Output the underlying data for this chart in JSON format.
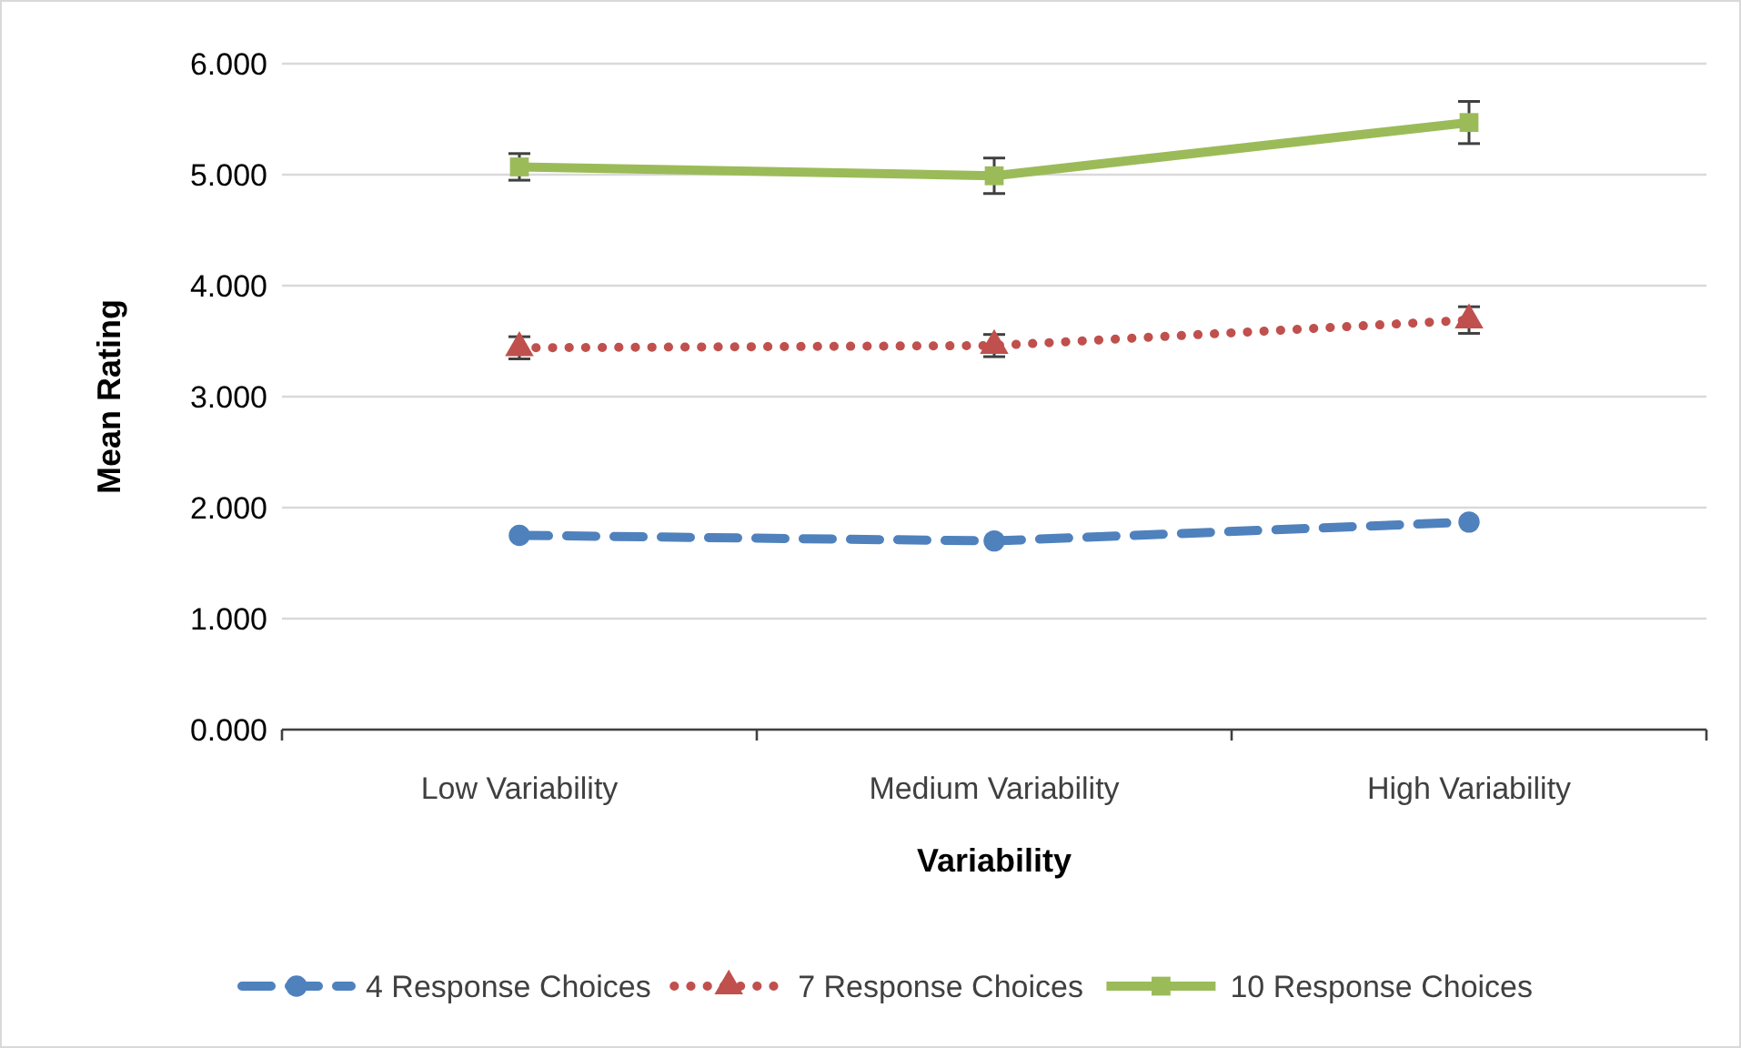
{
  "chart_data": {
    "type": "line",
    "xlabel": "Variability",
    "ylabel": "Mean Rating",
    "categories": [
      "Low Variability",
      "Medium Variability",
      "High Variability"
    ],
    "series": [
      {
        "name": "4 Response Choices",
        "color": "#4f81bd",
        "values": [
          1.75,
          1.7,
          1.87
        ],
        "marker": "circle",
        "line_style": "dashed"
      },
      {
        "name": "7 Response Choices",
        "color": "#c0504d",
        "values": [
          3.44,
          3.46,
          3.69
        ],
        "errors": [
          0.1,
          0.1,
          0.12
        ],
        "marker": "triangle",
        "line_style": "dotted"
      },
      {
        "name": "10 Response Choices",
        "color": "#9bbb59",
        "values": [
          5.07,
          4.99,
          5.47
        ],
        "errors": [
          0.12,
          0.16,
          0.19
        ],
        "marker": "square",
        "line_style": "solid"
      }
    ],
    "ylim": [
      0,
      6
    ],
    "yticks": [
      {
        "value": 0,
        "label": "0.000"
      },
      {
        "value": 1,
        "label": "1.000"
      },
      {
        "value": 2,
        "label": "2.000"
      },
      {
        "value": 3,
        "label": "3.000"
      },
      {
        "value": 4,
        "label": "4.000"
      },
      {
        "value": 5,
        "label": "5.000"
      },
      {
        "value": 6,
        "label": "6.000"
      }
    ],
    "grid": "y",
    "legend": "bottom"
  }
}
